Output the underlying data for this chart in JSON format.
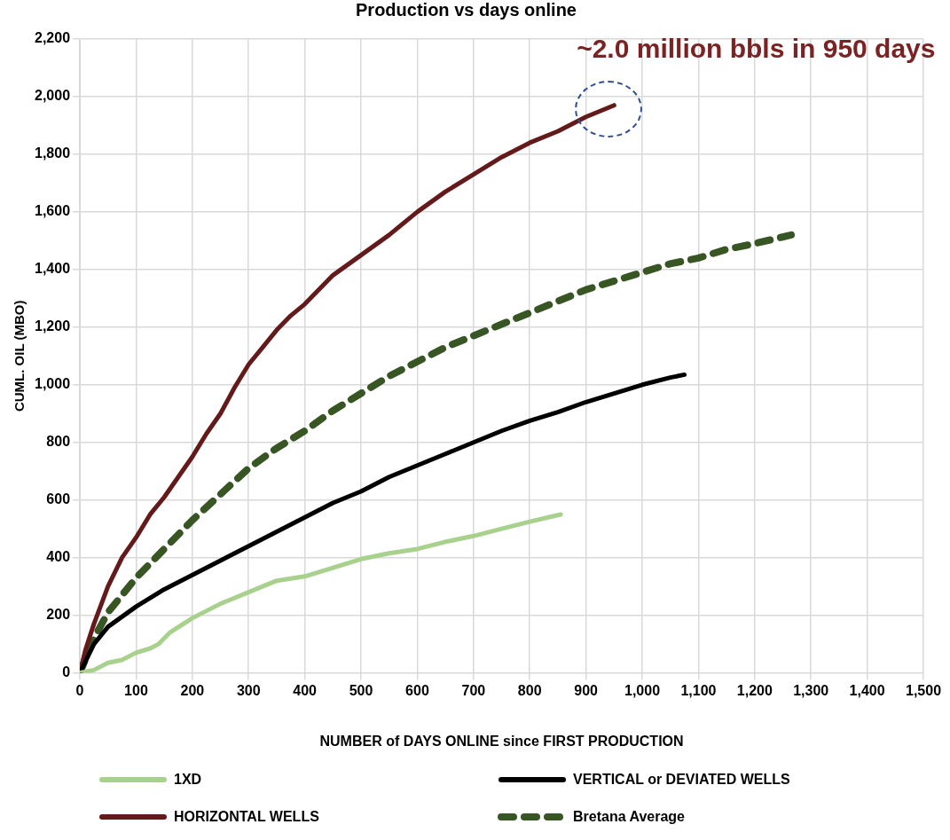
{
  "chart_data": {
    "type": "line",
    "title": "Production vs days online",
    "xlabel": "NUMBER of DAYS ONLINE since FIRST PRODUCTION",
    "ylabel": "CUML. OIL (MBO)",
    "xlim": [
      0,
      1500
    ],
    "xticks": [
      0,
      100,
      200,
      300,
      400,
      500,
      600,
      700,
      800,
      900,
      {
        "value": 1000,
        "label": "1,000"
      },
      {
        "value": 1100,
        "label": "1,100"
      },
      {
        "value": 1200,
        "label": "1,200"
      },
      {
        "value": 1300,
        "label": "1,300"
      },
      {
        "value": 1400,
        "label": "1,400"
      },
      {
        "value": 1500,
        "label": "1,500"
      }
    ],
    "ylim": [
      0,
      2200
    ],
    "yticks": [
      0,
      200,
      400,
      600,
      800,
      {
        "value": 1000,
        "label": "1,000"
      },
      {
        "value": 1200,
        "label": "1,200"
      },
      {
        "value": 1400,
        "label": "1,400"
      },
      {
        "value": 1600,
        "label": "1,600"
      },
      {
        "value": 1800,
        "label": "1,800"
      },
      {
        "value": 2000,
        "label": "2,000"
      },
      {
        "value": 2200,
        "label": "2,200"
      }
    ],
    "grid": true,
    "legend": "bottom",
    "marker": "none",
    "line_style": "solid",
    "annotations": [
      {
        "text": "~2.0 million bbls in 950 days",
        "x": 950,
        "y": 1970
      }
    ],
    "series": [
      {
        "name": "1XD",
        "color": "#a9d18e",
        "x": [
          0,
          25,
          50,
          75,
          100,
          125,
          140,
          160,
          200,
          250,
          300,
          350,
          400,
          450,
          500,
          550,
          600,
          650,
          700,
          750,
          800,
          855
        ],
        "values": [
          0,
          10,
          35,
          45,
          70,
          85,
          100,
          140,
          190,
          240,
          280,
          320,
          335,
          365,
          395,
          415,
          430,
          455,
          475,
          500,
          525,
          550
        ]
      },
      {
        "name": "VERTICAL or DEVIATED WELLS",
        "color": "#000000",
        "x": [
          0,
          25,
          50,
          100,
          150,
          200,
          250,
          300,
          350,
          400,
          450,
          500,
          550,
          600,
          650,
          700,
          750,
          800,
          850,
          900,
          950,
          1000,
          1050,
          1075
        ],
        "values": [
          0,
          100,
          160,
          230,
          290,
          340,
          390,
          440,
          490,
          540,
          590,
          630,
          680,
          720,
          760,
          800,
          840,
          875,
          905,
          940,
          970,
          1000,
          1025,
          1035
        ]
      },
      {
        "name": "HORIZONTAL WELLS",
        "color": "#641a1a",
        "x": [
          0,
          10,
          25,
          50,
          75,
          100,
          125,
          150,
          175,
          200,
          225,
          250,
          275,
          300,
          325,
          350,
          375,
          400,
          450,
          500,
          550,
          600,
          650,
          700,
          750,
          800,
          850,
          900,
          950
        ],
        "values": [
          0,
          80,
          170,
          300,
          400,
          470,
          550,
          610,
          680,
          750,
          830,
          900,
          990,
          1070,
          1130,
          1190,
          1240,
          1280,
          1380,
          1450,
          1520,
          1600,
          1670,
          1730,
          1790,
          1840,
          1880,
          1930,
          1970
        ]
      },
      {
        "name": "Bretana Average",
        "color": "#375623",
        "line_style": "dashed",
        "x": [
          0,
          25,
          50,
          100,
          150,
          200,
          250,
          300,
          350,
          400,
          450,
          500,
          550,
          600,
          650,
          700,
          750,
          800,
          850,
          900,
          950,
          1000,
          1050,
          1100,
          1150,
          1200,
          1265
        ],
        "values": [
          0,
          120,
          210,
          330,
          430,
          530,
          620,
          710,
          780,
          840,
          910,
          970,
          1030,
          1080,
          1130,
          1170,
          1210,
          1250,
          1290,
          1330,
          1360,
          1390,
          1420,
          1440,
          1470,
          1490,
          1520
        ]
      }
    ]
  }
}
